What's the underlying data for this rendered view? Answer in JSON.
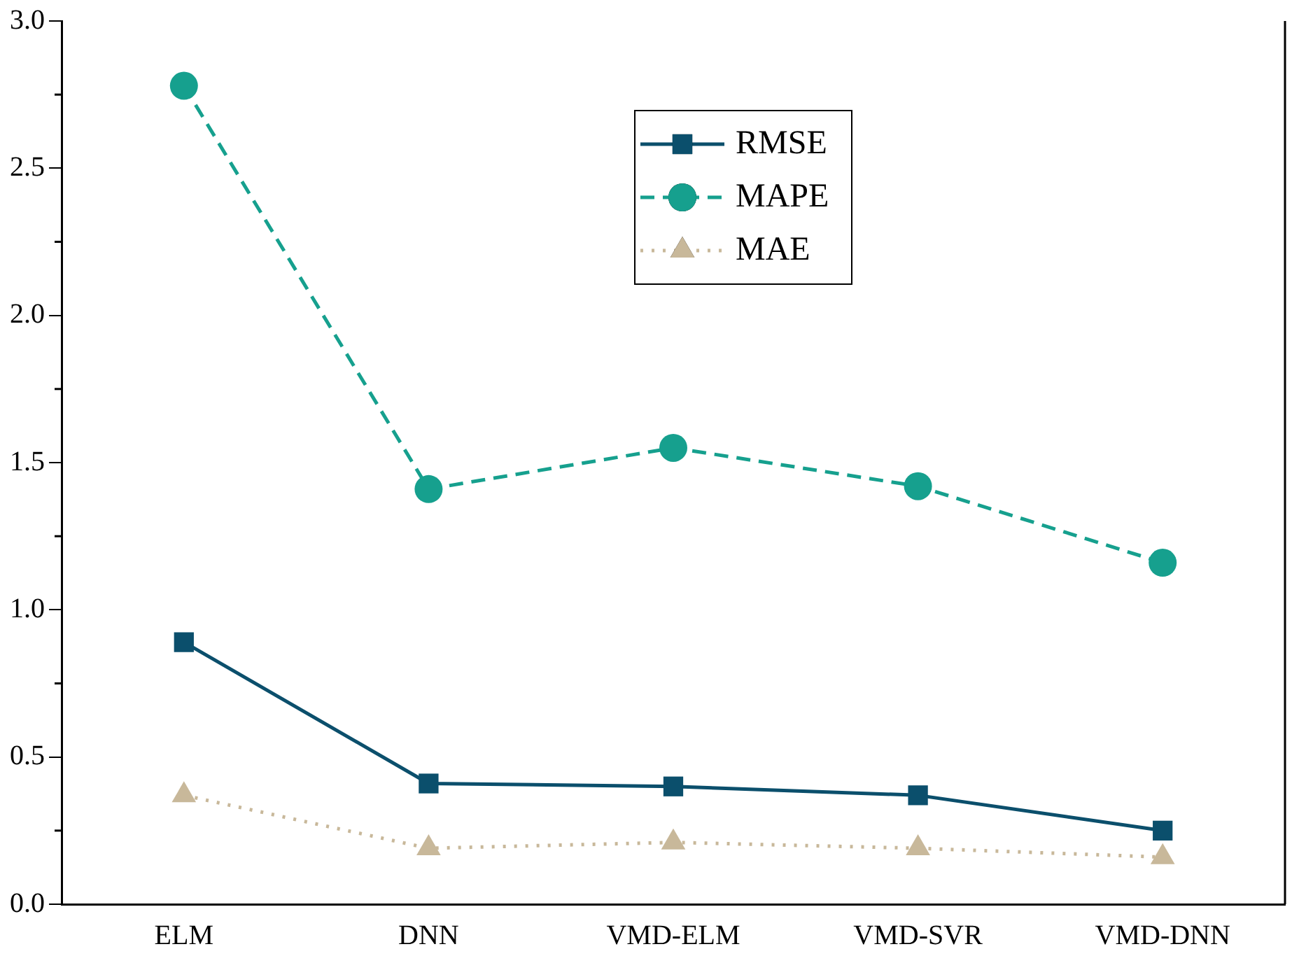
{
  "chart_data": {
    "type": "line",
    "categories": [
      "ELM",
      "DNN",
      "VMD-ELM",
      "VMD-SVR",
      "VMD-DNN"
    ],
    "series": [
      {
        "name": "RMSE",
        "color": "#0b4f6c",
        "marker": "square",
        "line_style": "solid",
        "values": [
          0.89,
          0.41,
          0.4,
          0.37,
          0.25
        ]
      },
      {
        "name": "MAPE",
        "color": "#16a08e",
        "marker": "circle",
        "line_style": "dashed",
        "values": [
          2.78,
          1.41,
          1.55,
          1.42,
          1.16
        ]
      },
      {
        "name": "MAE",
        "color": "#c8b89a",
        "marker": "triangle",
        "line_style": "dotted",
        "values": [
          0.37,
          0.19,
          0.21,
          0.19,
          0.16
        ]
      }
    ],
    "ylim": [
      0,
      3
    ],
    "yticks": [
      {
        "value": 0,
        "label": "0.0"
      },
      0.5,
      {
        "value": 1,
        "label": "1.0"
      },
      1.5,
      {
        "value": 2,
        "label": "2.0"
      },
      2.5,
      {
        "value": 3,
        "label": "3.0"
      }
    ],
    "grid": false,
    "legend": "top"
  }
}
